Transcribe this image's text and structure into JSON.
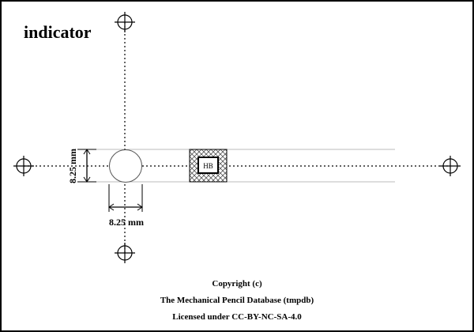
{
  "title": "indicator",
  "dimensions": {
    "vertical": "8.25 mm",
    "horizontal": "8.25 mm"
  },
  "lead_label": "HB",
  "footer": {
    "line1": "Copyright (c)",
    "line2": "The Mechanical Pencil Database (tmpdb)",
    "line3": "Licensed under CC-BY-NC-SA-4.0"
  },
  "icons": {
    "registration_marks": "crosshair-circle",
    "hatch": "crosshatch"
  }
}
